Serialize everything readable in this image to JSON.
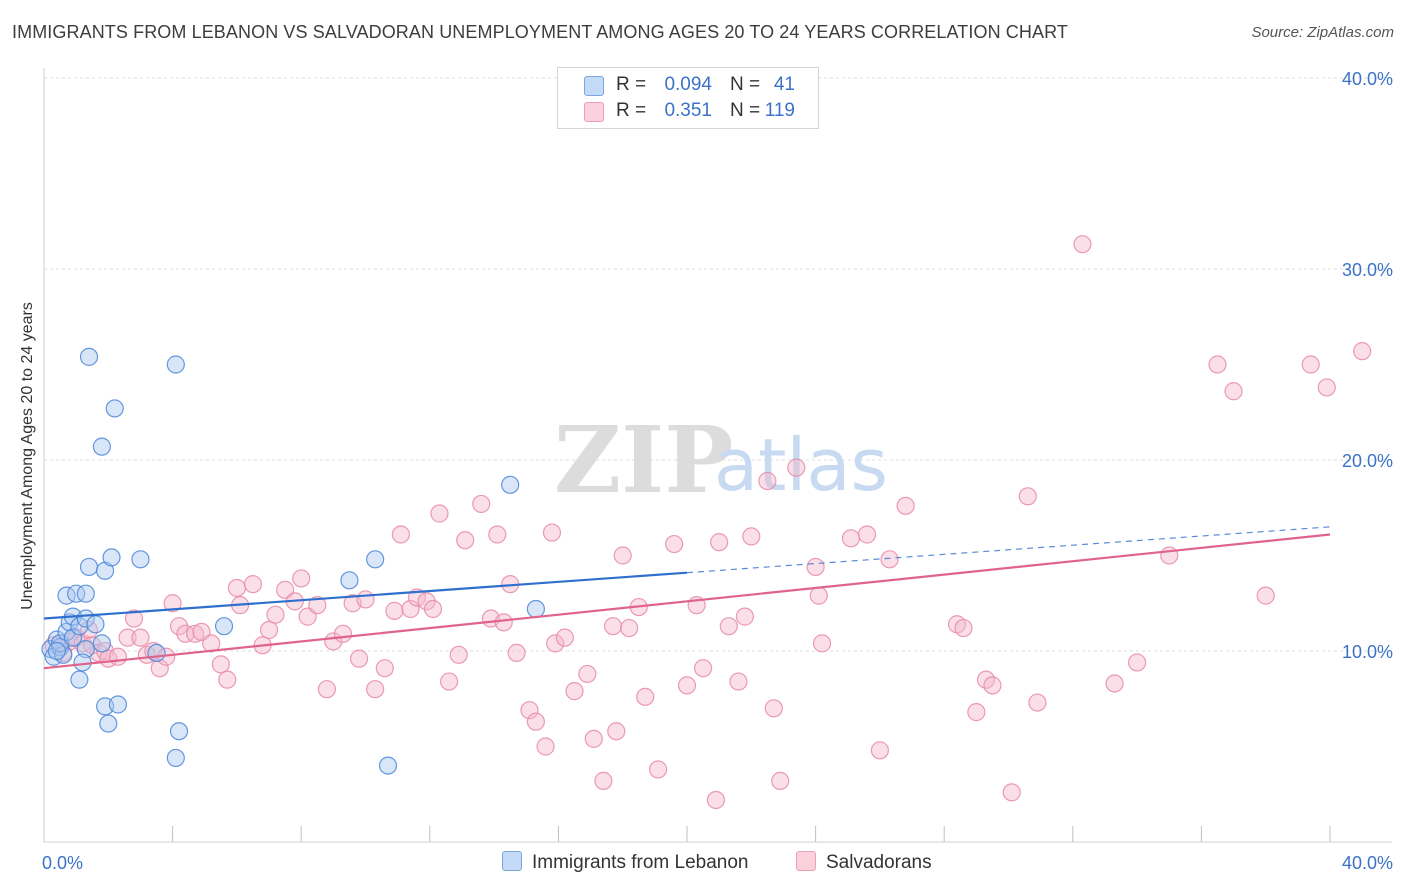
{
  "header": {
    "title": "IMMIGRANTS FROM LEBANON VS SALVADORAN UNEMPLOYMENT AMONG AGES 20 TO 24 YEARS CORRELATION CHART",
    "source": "Source: ZipAtlas.com"
  },
  "watermark": {
    "zip": "ZIP",
    "atlas": "atlas"
  },
  "legend_stats": [
    {
      "r_label": "R =",
      "r_value": "0.094",
      "n_label": "N =",
      "n_value": "41",
      "color": "#aac8f0"
    },
    {
      "r_label": "R =",
      "r_value": "0.351",
      "n_label": "N =",
      "n_value": "119",
      "color": "#f5b8cb"
    }
  ],
  "chart_data": {
    "type": "scatter",
    "title": "IMMIGRANTS FROM LEBANON VS SALVADORAN UNEMPLOYMENT AMONG AGES 20 TO 24 YEARS CORRELATION CHART",
    "xlabel": "",
    "ylabel": "Unemployment Among Ages 20 to 24 years",
    "xlim": [
      0,
      40
    ],
    "ylim": [
      0,
      40
    ],
    "x_tick_labels": [
      "0.0%",
      "40.0%"
    ],
    "y_ticks": [
      10,
      20,
      30,
      40
    ],
    "y_tick_labels": [
      "10.0%",
      "20.0%",
      "30.0%",
      "40.0%"
    ],
    "grid": true,
    "legend": "bottom-center",
    "series": [
      {
        "name": "Immigrants from Lebanon",
        "color": "#4a86d8",
        "fill": "#aac8f0",
        "trend_color": "#2f6fcd",
        "trend": {
          "x0": 0,
          "y0": 11.7,
          "x1": 20,
          "y1": 14.1,
          "dashed_to_x": 40,
          "dashed_to_y": 16.5
        },
        "points": [
          [
            0.2,
            10.1
          ],
          [
            0.3,
            9.7
          ],
          [
            0.4,
            10.6
          ],
          [
            0.5,
            10.2
          ],
          [
            0.6,
            9.8
          ],
          [
            0.5,
            10.4
          ],
          [
            0.4,
            10.0
          ],
          [
            0.7,
            11.0
          ],
          [
            0.8,
            11.5
          ],
          [
            0.9,
            10.7
          ],
          [
            0.7,
            12.9
          ],
          [
            0.9,
            11.8
          ],
          [
            1.0,
            13.0
          ],
          [
            1.1,
            11.3
          ],
          [
            1.3,
            11.7
          ],
          [
            1.3,
            13.0
          ],
          [
            1.4,
            14.4
          ],
          [
            1.6,
            11.4
          ],
          [
            1.8,
            10.4
          ],
          [
            1.3,
            10.1
          ],
          [
            1.2,
            9.4
          ],
          [
            1.1,
            8.5
          ],
          [
            1.9,
            14.2
          ],
          [
            2.1,
            14.9
          ],
          [
            3.0,
            14.8
          ],
          [
            1.4,
            25.4
          ],
          [
            2.2,
            22.7
          ],
          [
            1.8,
            20.7
          ],
          [
            4.1,
            25.0
          ],
          [
            3.5,
            9.9
          ],
          [
            5.6,
            11.3
          ],
          [
            9.5,
            13.7
          ],
          [
            10.3,
            14.8
          ],
          [
            14.5,
            18.7
          ],
          [
            15.3,
            12.2
          ],
          [
            1.9,
            7.1
          ],
          [
            2.0,
            6.2
          ],
          [
            2.3,
            7.2
          ],
          [
            4.2,
            5.8
          ],
          [
            4.1,
            4.4
          ],
          [
            10.7,
            4.0
          ]
        ]
      },
      {
        "name": "Salvadorans",
        "color": "#e88aa7",
        "fill": "#f5b8cb",
        "trend_color": "#e0638c",
        "trend": {
          "x0": 0,
          "y0": 9.1,
          "x1": 40,
          "y1": 16.1
        },
        "points": [
          [
            0.3,
            10.3
          ],
          [
            0.5,
            10.2
          ],
          [
            0.6,
            9.9
          ],
          [
            0.8,
            10.5
          ],
          [
            1.0,
            10.7
          ],
          [
            1.2,
            10.4
          ],
          [
            1.4,
            11.1
          ],
          [
            1.5,
            10.3
          ],
          [
            1.7,
            9.9
          ],
          [
            1.9,
            10.0
          ],
          [
            2.0,
            9.6
          ],
          [
            2.3,
            9.7
          ],
          [
            2.6,
            10.7
          ],
          [
            2.8,
            11.7
          ],
          [
            3.0,
            10.7
          ],
          [
            3.2,
            9.8
          ],
          [
            3.4,
            10.0
          ],
          [
            3.6,
            9.1
          ],
          [
            3.8,
            9.7
          ],
          [
            4.0,
            12.5
          ],
          [
            4.2,
            11.3
          ],
          [
            4.4,
            10.9
          ],
          [
            4.7,
            10.9
          ],
          [
            4.9,
            11.0
          ],
          [
            5.2,
            10.4
          ],
          [
            5.5,
            9.3
          ],
          [
            5.7,
            8.5
          ],
          [
            6.0,
            13.3
          ],
          [
            6.1,
            12.4
          ],
          [
            6.5,
            13.5
          ],
          [
            6.8,
            10.3
          ],
          [
            7.0,
            11.1
          ],
          [
            7.2,
            11.9
          ],
          [
            7.5,
            13.2
          ],
          [
            7.8,
            12.6
          ],
          [
            8.0,
            13.8
          ],
          [
            8.2,
            11.8
          ],
          [
            8.5,
            12.4
          ],
          [
            8.8,
            8.0
          ],
          [
            9.0,
            10.5
          ],
          [
            9.3,
            10.9
          ],
          [
            9.6,
            12.5
          ],
          [
            9.8,
            9.6
          ],
          [
            10.0,
            12.7
          ],
          [
            10.3,
            8.0
          ],
          [
            10.6,
            9.1
          ],
          [
            10.9,
            12.1
          ],
          [
            11.1,
            16.1
          ],
          [
            11.4,
            12.2
          ],
          [
            11.6,
            12.8
          ],
          [
            11.9,
            12.6
          ],
          [
            12.1,
            12.2
          ],
          [
            12.3,
            17.2
          ],
          [
            12.6,
            8.4
          ],
          [
            12.9,
            9.8
          ],
          [
            13.1,
            15.8
          ],
          [
            13.6,
            17.7
          ],
          [
            13.9,
            11.7
          ],
          [
            14.1,
            16.1
          ],
          [
            14.3,
            11.5
          ],
          [
            14.5,
            13.5
          ],
          [
            14.7,
            9.9
          ],
          [
            15.1,
            6.9
          ],
          [
            15.3,
            6.3
          ],
          [
            15.6,
            5.0
          ],
          [
            15.8,
            16.2
          ],
          [
            15.9,
            10.4
          ],
          [
            16.2,
            10.7
          ],
          [
            16.5,
            7.9
          ],
          [
            16.9,
            8.8
          ],
          [
            17.1,
            5.4
          ],
          [
            17.4,
            3.2
          ],
          [
            17.7,
            11.3
          ],
          [
            17.8,
            5.8
          ],
          [
            18.0,
            15.0
          ],
          [
            18.2,
            11.2
          ],
          [
            18.5,
            12.3
          ],
          [
            18.7,
            7.6
          ],
          [
            19.1,
            3.8
          ],
          [
            19.6,
            15.6
          ],
          [
            20.0,
            8.2
          ],
          [
            20.3,
            12.4
          ],
          [
            20.5,
            9.1
          ],
          [
            20.9,
            2.2
          ],
          [
            21.0,
            15.7
          ],
          [
            21.3,
            11.3
          ],
          [
            21.6,
            8.4
          ],
          [
            21.8,
            11.8
          ],
          [
            22.0,
            16.0
          ],
          [
            22.5,
            18.9
          ],
          [
            22.7,
            7.0
          ],
          [
            22.9,
            3.2
          ],
          [
            23.4,
            19.6
          ],
          [
            24.1,
            12.9
          ],
          [
            24.0,
            14.4
          ],
          [
            24.2,
            10.4
          ],
          [
            25.1,
            15.9
          ],
          [
            25.6,
            16.1
          ],
          [
            26.0,
            4.8
          ],
          [
            26.3,
            14.8
          ],
          [
            26.8,
            17.6
          ],
          [
            28.4,
            11.4
          ],
          [
            28.6,
            11.2
          ],
          [
            29.0,
            6.8
          ],
          [
            29.3,
            8.5
          ],
          [
            29.5,
            8.2
          ],
          [
            30.6,
            18.1
          ],
          [
            30.9,
            7.3
          ],
          [
            30.1,
            2.6
          ],
          [
            32.3,
            31.3
          ],
          [
            33.3,
            8.3
          ],
          [
            34.0,
            9.4
          ],
          [
            35.0,
            15.0
          ],
          [
            36.5,
            25.0
          ],
          [
            37.0,
            23.6
          ],
          [
            38.0,
            12.9
          ],
          [
            39.4,
            25.0
          ],
          [
            39.9,
            23.8
          ],
          [
            41.0,
            25.7
          ]
        ]
      }
    ]
  }
}
